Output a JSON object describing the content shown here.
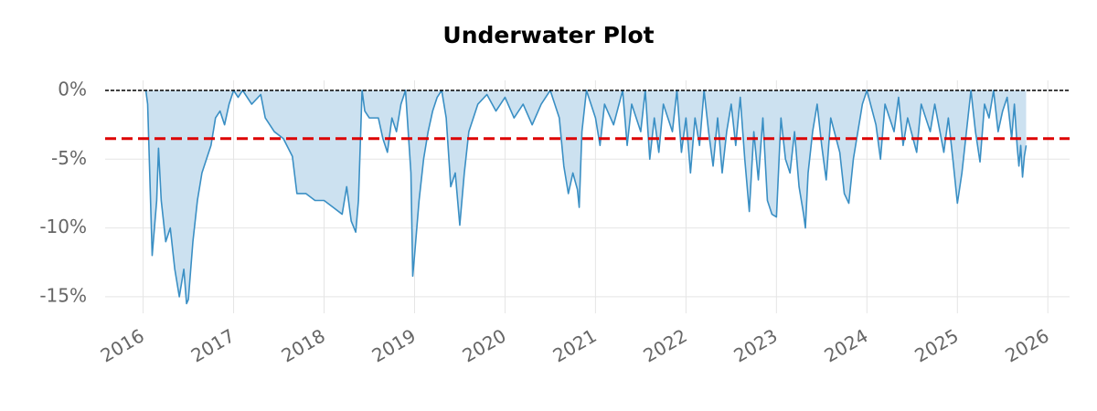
{
  "chart_data": {
    "type": "area",
    "title": "Underwater Plot",
    "series": [
      {
        "color": "#3a8fc4",
        "fill": "#cce1f0",
        "x": [
          2016.03,
          2016.05,
          2016.1,
          2016.15,
          2016.17,
          2016.2,
          2016.25,
          2016.3,
          2016.35,
          2016.4,
          2016.45,
          2016.48,
          2016.5,
          2016.55,
          2016.6,
          2016.65,
          2016.7,
          2016.75,
          2016.8,
          2016.85,
          2016.9,
          2016.95,
          2017.0,
          2017.05,
          2017.1,
          2017.2,
          2017.3,
          2017.35,
          2017.45,
          2017.55,
          2017.65,
          2017.7,
          2017.8,
          2017.9,
          2018.0,
          2018.1,
          2018.2,
          2018.25,
          2018.3,
          2018.35,
          2018.38,
          2018.42,
          2018.45,
          2018.5,
          2018.6,
          2018.65,
          2018.7,
          2018.75,
          2018.8,
          2018.85,
          2018.9,
          2018.93,
          2018.96,
          2018.98,
          2019.0,
          2019.05,
          2019.1,
          2019.15,
          2019.2,
          2019.25,
          2019.3,
          2019.35,
          2019.38,
          2019.4,
          2019.45,
          2019.5,
          2019.55,
          2019.6,
          2019.7,
          2019.8,
          2019.9,
          2020.0,
          2020.1,
          2020.2,
          2020.3,
          2020.4,
          2020.5,
          2020.6,
          2020.65,
          2020.7,
          2020.75,
          2020.8,
          2020.82,
          2020.85,
          2020.9,
          2021.0,
          2021.05,
          2021.1,
          2021.2,
          2021.3,
          2021.35,
          2021.4,
          2021.5,
          2021.55,
          2021.6,
          2021.65,
          2021.7,
          2021.75,
          2021.85,
          2021.9,
          2021.95,
          2022.0,
          2022.05,
          2022.1,
          2022.15,
          2022.2,
          2022.25,
          2022.3,
          2022.35,
          2022.4,
          2022.45,
          2022.5,
          2022.55,
          2022.6,
          2022.65,
          2022.7,
          2022.75,
          2022.8,
          2022.85,
          2022.9,
          2022.95,
          2023.0,
          2023.05,
          2023.1,
          2023.15,
          2023.2,
          2023.25,
          2023.3,
          2023.32,
          2023.35,
          2023.4,
          2023.45,
          2023.5,
          2023.55,
          2023.6,
          2023.7,
          2023.75,
          2023.8,
          2023.85,
          2023.9,
          2023.95,
          2024.0,
          2024.1,
          2024.15,
          2024.2,
          2024.3,
          2024.35,
          2024.4,
          2024.45,
          2024.55,
          2024.6,
          2024.7,
          2024.75,
          2024.85,
          2024.9,
          2024.95,
          2025.0,
          2025.05,
          2025.1,
          2025.15,
          2025.2,
          2025.25,
          2025.3,
          2025.35,
          2025.4,
          2025.45,
          2025.5,
          2025.55,
          2025.6,
          2025.63,
          2025.66,
          2025.68,
          2025.7,
          2025.72,
          2025.74,
          2025.76
        ],
        "values": [
          0,
          -1,
          -12,
          -8,
          -4.2,
          -8,
          -11,
          -10,
          -13,
          -15,
          -13,
          -15.5,
          -15.2,
          -11,
          -8,
          -6,
          -5,
          -4,
          -2,
          -1.5,
          -2.5,
          -1,
          0,
          -0.5,
          0,
          -1,
          -0.3,
          -2,
          -3,
          -3.5,
          -4.8,
          -7.5,
          -7.5,
          -8,
          -8,
          -8.5,
          -9,
          -7,
          -9.5,
          -10.3,
          -8,
          0,
          -1.5,
          -2,
          -2,
          -3.5,
          -4.5,
          -2,
          -3,
          -1,
          0,
          -3,
          -6,
          -13.5,
          -12,
          -8,
          -5,
          -3,
          -1.5,
          -0.5,
          0,
          -2,
          -5,
          -7,
          -6,
          -9.8,
          -6,
          -3,
          -1,
          -0.3,
          -1.5,
          -0.5,
          -2,
          -1,
          -2.5,
          -1,
          0,
          -2,
          -5.5,
          -7.5,
          -6,
          -7.2,
          -8.5,
          -3,
          0,
          -2,
          -4,
          -1,
          -2.5,
          0,
          -4,
          -1,
          -3,
          0,
          -5,
          -2,
          -4.5,
          -1,
          -3,
          0,
          -4.5,
          -2,
          -6,
          -2,
          -4,
          0,
          -3,
          -5.5,
          -2,
          -6,
          -3,
          -1,
          -4,
          -0.5,
          -5,
          -8.8,
          -3,
          -6.5,
          -2,
          -8,
          -9,
          -9.2,
          -2,
          -5,
          -6,
          -3,
          -7,
          -9,
          -10,
          -6,
          -3,
          -1,
          -4,
          -6.5,
          -2,
          -4.5,
          -7.5,
          -8.2,
          -5,
          -3,
          -1,
          0,
          -2.5,
          -5,
          -1,
          -3,
          -0.5,
          -4,
          -2,
          -4.5,
          -1,
          -3,
          -1,
          -4.5,
          -2,
          -5,
          -8.2,
          -6,
          -3,
          0,
          -3,
          -5.2,
          -1,
          -2,
          0,
          -3,
          -1.5,
          -0.5,
          -3.5,
          -1,
          -4,
          -5.5,
          -4,
          -6.3,
          -4.8,
          -4
        ]
      }
    ],
    "hlines": [
      {
        "value": 0,
        "color": "#000000",
        "style": "dotted"
      },
      {
        "value": -3.5,
        "color": "#dd0000",
        "style": "dashed"
      }
    ],
    "xlim": [
      2015.58,
      2026.24
    ],
    "xticks": [
      2016,
      2017,
      2018,
      2019,
      2020,
      2021,
      2022,
      2023,
      2024,
      2025,
      2026
    ],
    "ylim": [
      -16.2,
      0.73
    ],
    "yticks": [
      {
        "value": -15,
        "label": "-15%"
      },
      {
        "value": -10,
        "label": "-10%"
      },
      {
        "value": -5,
        "label": "-5%"
      },
      {
        "value": 0,
        "label": "0%"
      }
    ],
    "grid": true
  }
}
